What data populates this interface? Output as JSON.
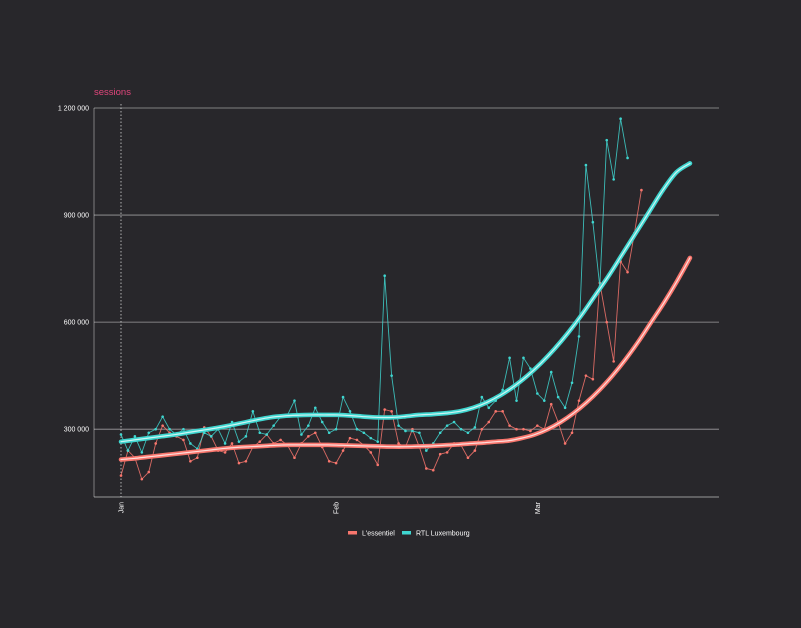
{
  "chart_data": {
    "type": "line",
    "title": "",
    "subtitle": "sessions",
    "xlabel": "",
    "ylabel": "",
    "x_ticks": [
      "Jan",
      "Feb",
      "Mar"
    ],
    "y_ticks": [
      "300 000",
      "600 000",
      "900 000",
      "1 200 000"
    ],
    "y_tick_values": [
      300000,
      600000,
      900000,
      1200000
    ],
    "ylim": [
      110000,
      1200000
    ],
    "x_range": [
      "2020-01-01",
      "2020-03-23"
    ],
    "grid": "horizontal",
    "vertical_marker": "2020-01-01",
    "legend_position": "bottom",
    "colors": {
      "background": "#28272b",
      "grid": "#ffffff",
      "lessentiel": "#f8766d",
      "rtl": "#3fd6d0",
      "subtitle": "#e0457b"
    },
    "series": [
      {
        "name": "L'essentiel",
        "color": "#f8766d",
        "x": [
          "2020-01-01",
          "2020-01-02",
          "2020-01-03",
          "2020-01-04",
          "2020-01-05",
          "2020-01-06",
          "2020-01-07",
          "2020-01-08",
          "2020-01-09",
          "2020-01-10",
          "2020-01-11",
          "2020-01-12",
          "2020-01-13",
          "2020-01-14",
          "2020-01-15",
          "2020-01-16",
          "2020-01-17",
          "2020-01-18",
          "2020-01-19",
          "2020-01-20",
          "2020-01-21",
          "2020-01-22",
          "2020-01-23",
          "2020-01-24",
          "2020-01-25",
          "2020-01-26",
          "2020-01-27",
          "2020-01-28",
          "2020-01-29",
          "2020-01-30",
          "2020-01-31",
          "2020-02-01",
          "2020-02-02",
          "2020-02-03",
          "2020-02-04",
          "2020-02-05",
          "2020-02-06",
          "2020-02-07",
          "2020-02-08",
          "2020-02-09",
          "2020-02-10",
          "2020-02-11",
          "2020-02-12",
          "2020-02-13",
          "2020-02-14",
          "2020-02-15",
          "2020-02-16",
          "2020-02-17",
          "2020-02-18",
          "2020-02-19",
          "2020-02-20",
          "2020-02-21",
          "2020-02-22",
          "2020-02-23",
          "2020-02-24",
          "2020-02-25",
          "2020-02-26",
          "2020-02-27",
          "2020-02-28",
          "2020-02-29",
          "2020-03-01",
          "2020-03-02",
          "2020-03-03",
          "2020-03-04",
          "2020-03-05",
          "2020-03-06",
          "2020-03-07",
          "2020-03-08",
          "2020-03-09",
          "2020-03-10",
          "2020-03-11",
          "2020-03-12",
          "2020-03-13",
          "2020-03-14",
          "2020-03-15",
          "2020-03-16",
          "2020-03-17",
          "2020-03-18",
          "2020-03-19",
          "2020-03-20",
          "2020-03-21",
          "2020-03-22",
          "2020-03-23"
        ],
        "values": [
          170000,
          240000,
          220000,
          160000,
          180000,
          260000,
          310000,
          290000,
          280000,
          270000,
          210000,
          220000,
          305000,
          280000,
          240000,
          235000,
          260000,
          205000,
          210000,
          250000,
          265000,
          285000,
          260000,
          270000,
          255000,
          220000,
          260000,
          280000,
          290000,
          250000,
          210000,
          205000,
          240000,
          275000,
          270000,
          255000,
          235000,
          200000,
          355000,
          350000,
          260000,
          250000,
          300000,
          250000,
          190000,
          185000,
          230000,
          235000,
          260000,
          255000,
          220000,
          240000,
          300000,
          320000,
          350000,
          350000,
          310000,
          300000,
          300000,
          295000,
          310000,
          300000,
          370000,
          320000,
          260000,
          290000,
          380000,
          450000,
          440000,
          710000,
          600000,
          490000,
          770000,
          740000,
          850000,
          970000,
          null,
          null,
          null,
          null,
          null,
          null,
          null
        ],
        "trend": [
          215000,
          218000,
          222000,
          226000,
          230000,
          234000,
          238000,
          242000,
          246000,
          249000,
          251000,
          253000,
          255000,
          256000,
          256000,
          256000,
          256000,
          255000,
          254000,
          253000,
          252000,
          251000,
          251000,
          252000,
          253000,
          255000,
          257000,
          260000,
          262000,
          265000,
          268000,
          275000,
          285000,
          300000,
          320000,
          345000,
          375000,
          410000,
          450000,
          495000,
          545000,
          600000,
          655000,
          715000,
          780000
        ]
      },
      {
        "name": "RTL Luxembourg",
        "color": "#3fd6d0",
        "x": [
          "2020-01-01",
          "2020-01-02",
          "2020-01-03",
          "2020-01-04",
          "2020-01-05",
          "2020-01-06",
          "2020-01-07",
          "2020-01-08",
          "2020-01-09",
          "2020-01-10",
          "2020-01-11",
          "2020-01-12",
          "2020-01-13",
          "2020-01-14",
          "2020-01-15",
          "2020-01-16",
          "2020-01-17",
          "2020-01-18",
          "2020-01-19",
          "2020-01-20",
          "2020-01-21",
          "2020-01-22",
          "2020-01-23",
          "2020-01-24",
          "2020-01-25",
          "2020-01-26",
          "2020-01-27",
          "2020-01-28",
          "2020-01-29",
          "2020-01-30",
          "2020-01-31",
          "2020-02-01",
          "2020-02-02",
          "2020-02-03",
          "2020-02-04",
          "2020-02-05",
          "2020-02-06",
          "2020-02-07",
          "2020-02-08",
          "2020-02-09",
          "2020-02-10",
          "2020-02-11",
          "2020-02-12",
          "2020-02-13",
          "2020-02-14",
          "2020-02-15",
          "2020-02-16",
          "2020-02-17",
          "2020-02-18",
          "2020-02-19",
          "2020-02-20",
          "2020-02-21",
          "2020-02-22",
          "2020-02-23",
          "2020-02-24",
          "2020-02-25",
          "2020-02-26",
          "2020-02-27",
          "2020-02-28",
          "2020-02-29",
          "2020-03-01",
          "2020-03-02",
          "2020-03-03",
          "2020-03-04",
          "2020-03-05",
          "2020-03-06",
          "2020-03-07",
          "2020-03-08",
          "2020-03-09",
          "2020-03-10",
          "2020-03-11",
          "2020-03-12",
          "2020-03-13",
          "2020-03-14",
          "2020-03-15",
          "2020-03-16",
          "2020-03-17",
          "2020-03-18",
          "2020-03-19",
          "2020-03-20",
          "2020-03-21",
          "2020-03-22",
          "2020-03-23"
        ],
        "values": [
          285000,
          240000,
          280000,
          235000,
          290000,
          300000,
          335000,
          300000,
          285000,
          300000,
          260000,
          245000,
          290000,
          280000,
          300000,
          260000,
          320000,
          265000,
          280000,
          350000,
          290000,
          285000,
          310000,
          335000,
          340000,
          380000,
          285000,
          310000,
          360000,
          320000,
          290000,
          300000,
          390000,
          350000,
          300000,
          290000,
          275000,
          265000,
          730000,
          450000,
          310000,
          295000,
          295000,
          290000,
          240000,
          260000,
          290000,
          310000,
          320000,
          300000,
          290000,
          305000,
          390000,
          360000,
          380000,
          410000,
          500000,
          380000,
          500000,
          470000,
          400000,
          380000,
          460000,
          390000,
          360000,
          430000,
          560000,
          1040000,
          880000,
          700000,
          1110000,
          1000000,
          1170000,
          1060000,
          null,
          null,
          null,
          null,
          null,
          null,
          null,
          null,
          null
        ],
        "trend": [
          265000,
          270000,
          275000,
          280000,
          285000,
          291000,
          297000,
          303000,
          310000,
          318000,
          326000,
          333000,
          337000,
          339000,
          340000,
          340000,
          340000,
          338000,
          335000,
          333000,
          333000,
          336000,
          340000,
          342000,
          345000,
          350000,
          360000,
          375000,
          395000,
          420000,
          450000,
          485000,
          525000,
          570000,
          620000,
          675000,
          730000,
          790000,
          850000,
          910000,
          970000,
          1020000,
          1045000
        ]
      }
    ]
  },
  "legend": {
    "items": [
      {
        "label": "L'essentiel",
        "color": "#f8766d"
      },
      {
        "label": "RTL Luxembourg",
        "color": "#3fd6d0"
      }
    ]
  }
}
